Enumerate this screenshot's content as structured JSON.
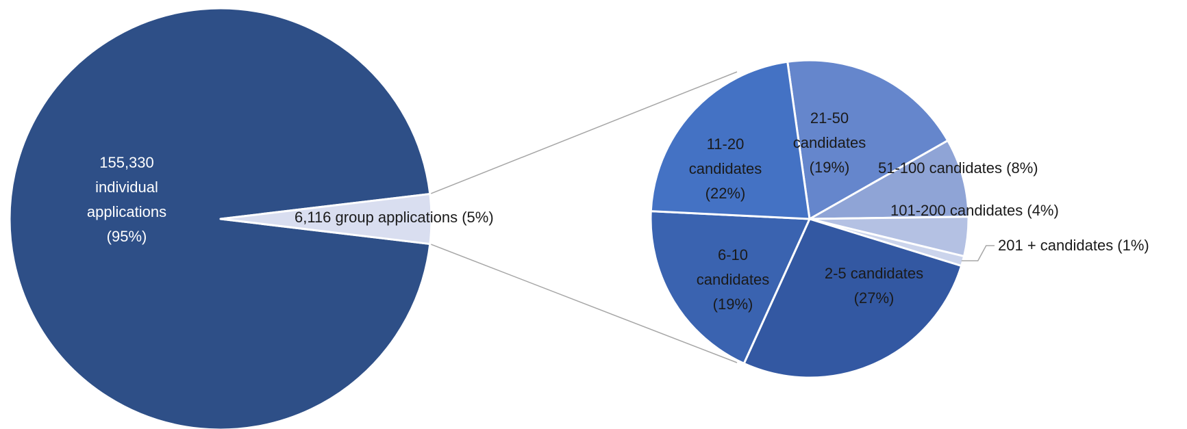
{
  "chart_data": {
    "type": "pie",
    "subtype": "pie-of-pie",
    "main_pie": {
      "slices": [
        {
          "name": "individual applications",
          "value": 155330,
          "percent": 95,
          "label_lines": [
            "155,330",
            "individual",
            "applications",
            "(95%)"
          ],
          "color": "#2e4f87"
        },
        {
          "name": "group applications",
          "value": 6116,
          "percent": 5,
          "label_lines": [
            "6,116  group applications (5%)"
          ],
          "color": "#d9def0"
        }
      ]
    },
    "secondary_pie": {
      "slices": [
        {
          "name": "2-5 candidates",
          "percent": 27,
          "label_lines": [
            "2-5 candidates",
            "(27%)"
          ],
          "color": "#3358a2"
        },
        {
          "name": "6-10 candidates",
          "percent": 19,
          "label_lines": [
            "6-10",
            "candidates",
            "(19%)"
          ],
          "color": "#3a63b0"
        },
        {
          "name": "11-20 candidates",
          "percent": 22,
          "label_lines": [
            "11-20",
            "candidates",
            "(22%)"
          ],
          "color": "#4472c4"
        },
        {
          "name": "21-50 candidates",
          "percent": 19,
          "label_lines": [
            "21-50",
            "candidates",
            "(19%)"
          ],
          "color": "#6586cc"
        },
        {
          "name": "51-100 candidates",
          "percent": 8,
          "label_lines": [
            "51-100 candidates (8%)"
          ],
          "color": "#8fa4d6"
        },
        {
          "name": "101-200 candidates",
          "percent": 4,
          "label_lines": [
            "101-200 candidates (4%)"
          ],
          "color": "#b4c1e3"
        },
        {
          "name": "201 + candidates",
          "percent": 1,
          "label_lines": [
            "201 + candidates (1%)"
          ],
          "color": "#cbd4ec"
        }
      ]
    },
    "legend": "none",
    "grid": false
  }
}
